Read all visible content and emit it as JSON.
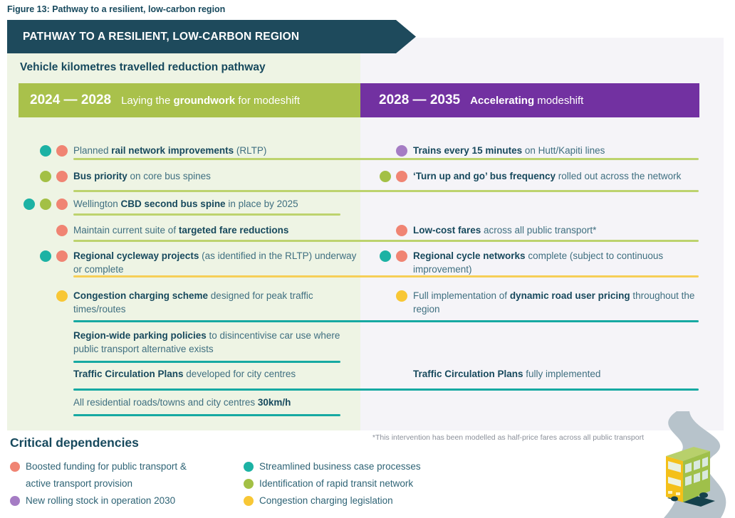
{
  "colors": {
    "banner": "#1e4a5c",
    "panel_left": "#eef4e4",
    "panel_right": "#f5f4f8",
    "bar_left": "#a9c14b",
    "bar_right": "#7231a1",
    "teal": "#1cb2a4",
    "salmon": "#f08473",
    "green": "#a3c045",
    "yellow": "#f8c735",
    "purple": "#a57cc4",
    "line_green": "#bdd36e",
    "line_yellow": "#f6cf57",
    "line_teal": "#16a9a2",
    "text_dark": "#17495d",
    "text_body": "#3f6f80",
    "road": "#b7c3cb"
  },
  "figure_caption": "Figure 13: Pathway to a resilient, low-carbon region",
  "banner_title": "PATHWAY TO A RESILIENT, LOW-CARBON REGION",
  "subtitle": "Vehicle kilometres travelled reduction pathway",
  "headers": {
    "left": {
      "years": "2024 — 2028",
      "pre": "Laying the ",
      "bold": "groundwork",
      "post": " for modeshift"
    },
    "right": {
      "years": "2028 — 2035",
      "pre": "",
      "bold": "Accelerating",
      "post": " modeshift"
    }
  },
  "left_rows": [
    {
      "pre": "Planned ",
      "bold": "rail network improvements",
      "post": " (RLTP)",
      "dots": [
        "teal",
        "salmon"
      ]
    },
    {
      "pre": "",
      "bold": "Bus priority",
      "post": " on core bus spines",
      "dots": [
        "green",
        "salmon"
      ]
    },
    {
      "pre": "Wellington ",
      "bold": "CBD second bus spine",
      "post": " in place by 2025",
      "dots": [
        "teal",
        "green",
        "salmon"
      ]
    },
    {
      "pre": "Maintain current suite of ",
      "bold": "targeted fare reductions",
      "post": "",
      "dots": [
        "salmon"
      ]
    },
    {
      "pre": "",
      "bold": "Regional cycleway projects",
      "post": " (as identified in the RLTP) underway or complete",
      "dots": [
        "teal",
        "salmon"
      ]
    },
    {
      "pre": "",
      "bold": "Congestion charging scheme",
      "post": " designed for peak traffic times/routes",
      "dots": [
        "yellow"
      ]
    },
    {
      "pre": "",
      "bold": "Region-wide parking policies",
      "post": " to disincentivise car use where public transport alternative exists",
      "dots": []
    },
    {
      "pre": "",
      "bold": "Traffic Circulation Plans",
      "post": " developed for city centres",
      "dots": []
    },
    {
      "pre": "All residential roads/towns and city centres ",
      "bold": "30km/h",
      "post": "",
      "dots": []
    }
  ],
  "right_rows": [
    {
      "pre": "",
      "bold": "Trains every 15 minutes",
      "post": " on Hutt/Kapiti lines",
      "dots": [
        "purple"
      ]
    },
    {
      "pre": "",
      "bold": "‘Turn up and go’ bus frequency",
      "post": " rolled out across the network",
      "dots": [
        "green",
        "salmon"
      ]
    },
    {
      "pre": "",
      "bold": "Low-cost fares",
      "post": " across all public transport*",
      "dots": [
        "salmon"
      ]
    },
    {
      "pre": "",
      "bold": "Regional cycle networks",
      "post": " complete (subject to continuous improvement)",
      "dots": [
        "teal",
        "salmon"
      ]
    },
    {
      "pre": "Full implementation of ",
      "bold": "dynamic road user pricing",
      "post": " throughout the region",
      "dots": [
        "yellow"
      ]
    },
    {
      "pre": "",
      "bold": "Traffic Circulation Plans",
      "post": " fully implemented",
      "dots": []
    }
  ],
  "footnote": "*This intervention has been modelled as half-price fares across all public transport",
  "dependencies": {
    "title": "Critical dependencies",
    "col1": [
      {
        "label": "Boosted funding for public transport & active transport provision",
        "dot": "salmon"
      },
      {
        "label": "New rolling stock in operation 2030",
        "dot": "purple"
      }
    ],
    "col2": [
      {
        "label": "Streamlined business case processes",
        "dot": "teal"
      },
      {
        "label": "Identification of rapid transit network",
        "dot": "green"
      },
      {
        "label": "Congestion charging legislation",
        "dot": "yellow"
      }
    ]
  }
}
